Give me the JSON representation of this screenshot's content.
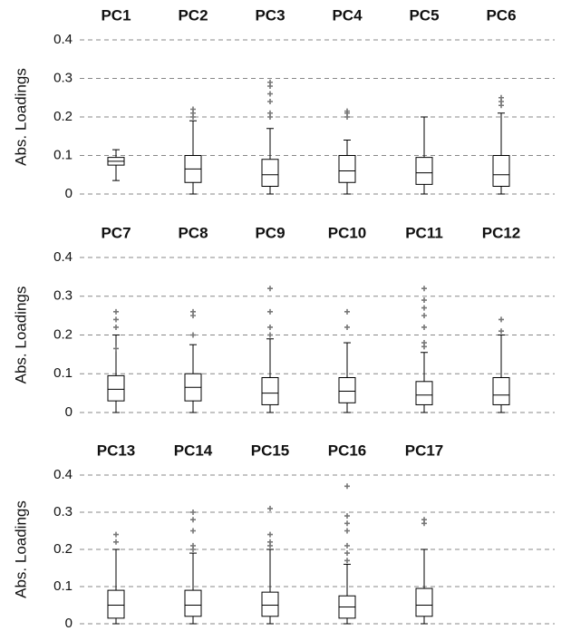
{
  "chart_data": [
    {
      "type": "box",
      "categories": [
        "PC1",
        "PC2",
        "PC3",
        "PC4",
        "PC5",
        "PC6"
      ],
      "y_label": "Abs. Loadings",
      "ylim": [
        0,
        0.4
      ],
      "yticks": [
        0,
        0.1,
        0.2,
        0.3,
        0.4
      ],
      "grid": true,
      "color": "#000000",
      "outlier_color": "#777777",
      "boxes": [
        {
          "min": 0.035,
          "q1": 0.075,
          "median": 0.085,
          "q3": 0.095,
          "max": 0.115,
          "outliers": []
        },
        {
          "min": 0,
          "q1": 0.03,
          "median": 0.065,
          "q3": 0.1,
          "max": 0.19,
          "outliers": [
            0.2,
            0.21,
            0.22
          ]
        },
        {
          "min": 0,
          "q1": 0.02,
          "median": 0.05,
          "q3": 0.09,
          "max": 0.17,
          "outliers": [
            0.2,
            0.21,
            0.24,
            0.26,
            0.28,
            0.29
          ]
        },
        {
          "min": 0,
          "q1": 0.03,
          "median": 0.06,
          "q3": 0.1,
          "max": 0.14,
          "outliers": [
            0.2,
            0.21,
            0.215
          ]
        },
        {
          "min": 0,
          "q1": 0.025,
          "median": 0.055,
          "q3": 0.095,
          "max": 0.2,
          "outliers": []
        },
        {
          "min": 0,
          "q1": 0.02,
          "median": 0.05,
          "q3": 0.1,
          "max": 0.21,
          "outliers": [
            0.23,
            0.24,
            0.25
          ]
        }
      ]
    },
    {
      "type": "box",
      "categories": [
        "PC7",
        "PC8",
        "PC9",
        "PC10",
        "PC11",
        "PC12"
      ],
      "y_label": "Abs. Loadings",
      "ylim": [
        0,
        0.4
      ],
      "yticks": [
        0,
        0.1,
        0.2,
        0.3,
        0.4
      ],
      "grid": true,
      "color": "#000000",
      "outlier_color": "#777777",
      "boxes": [
        {
          "min": 0,
          "q1": 0.03,
          "median": 0.06,
          "q3": 0.095,
          "max": 0.2,
          "outliers": [
            0.165,
            0.22,
            0.24,
            0.26
          ]
        },
        {
          "min": 0,
          "q1": 0.03,
          "median": 0.065,
          "q3": 0.1,
          "max": 0.175,
          "outliers": [
            0.2,
            0.25,
            0.26
          ]
        },
        {
          "min": 0,
          "q1": 0.02,
          "median": 0.05,
          "q3": 0.09,
          "max": 0.19,
          "outliers": [
            0.2,
            0.22,
            0.26,
            0.32
          ]
        },
        {
          "min": 0,
          "q1": 0.025,
          "median": 0.055,
          "q3": 0.09,
          "max": 0.18,
          "outliers": [
            0.22,
            0.26
          ]
        },
        {
          "min": 0,
          "q1": 0.02,
          "median": 0.045,
          "q3": 0.08,
          "max": 0.155,
          "outliers": [
            0.17,
            0.18,
            0.22,
            0.25,
            0.27,
            0.29,
            0.32
          ]
        },
        {
          "min": 0,
          "q1": 0.02,
          "median": 0.045,
          "q3": 0.09,
          "max": 0.2,
          "outliers": [
            0.21,
            0.24
          ]
        }
      ]
    },
    {
      "type": "box",
      "categories": [
        "PC13",
        "PC14",
        "PC15",
        "PC16",
        "PC17"
      ],
      "y_label": "Abs. Loadings",
      "ylim": [
        0,
        0.4
      ],
      "yticks": [
        0,
        0.1,
        0.2,
        0.3,
        0.4
      ],
      "grid": true,
      "color": "#000000",
      "outlier_color": "#777777",
      "boxes": [
        {
          "min": 0,
          "q1": 0.015,
          "median": 0.05,
          "q3": 0.09,
          "max": 0.2,
          "outliers": [
            0.22,
            0.24
          ]
        },
        {
          "min": 0,
          "q1": 0.02,
          "median": 0.05,
          "q3": 0.09,
          "max": 0.19,
          "outliers": [
            0.2,
            0.21,
            0.25,
            0.28,
            0.3
          ]
        },
        {
          "min": 0,
          "q1": 0.02,
          "median": 0.05,
          "q3": 0.085,
          "max": 0.2,
          "outliers": [
            0.21,
            0.22,
            0.24,
            0.31
          ]
        },
        {
          "min": 0,
          "q1": 0.015,
          "median": 0.045,
          "q3": 0.075,
          "max": 0.16,
          "outliers": [
            0.17,
            0.19,
            0.21,
            0.25,
            0.27,
            0.29,
            0.37
          ]
        },
        {
          "min": 0,
          "q1": 0.02,
          "median": 0.05,
          "q3": 0.095,
          "max": 0.2,
          "outliers": [
            0.27,
            0.28
          ]
        }
      ]
    }
  ]
}
